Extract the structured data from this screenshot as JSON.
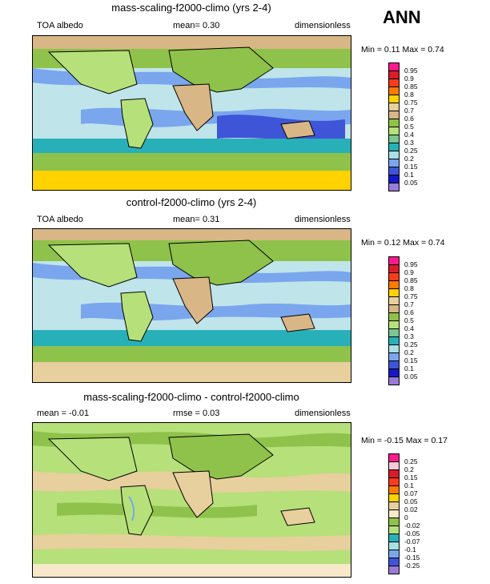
{
  "header": {
    "annual_label": "ANN"
  },
  "panels": [
    {
      "title": "mass-scaling-f2000-climo (yrs 2-4)",
      "left_label": "TOA albedo",
      "center_label": "mean=  0.30",
      "right_label": "dimensionless",
      "minmax": "Min =   0.11 Max =   0.74"
    },
    {
      "title": "control-f2000-climo (yrs 2-4)",
      "left_label": "TOA albedo",
      "center_label": "mean=  0.31",
      "right_label": "dimensionless",
      "minmax": "Min =  0.12 Max =   0.74"
    },
    {
      "title": "mass-scaling-f2000-climo - control-f2000-climo",
      "left_label": "mean = -0.01",
      "center_label": "rmse =  0.03",
      "right_label": "dimensionless",
      "minmax": "Min =  -0.15 Max =   0.17"
    }
  ],
  "colorbars": {
    "fields": {
      "labels": [
        "0.95",
        "0.9",
        "0.85",
        "0.8",
        "0.75",
        "0.7",
        "0.6",
        "0.5",
        "0.4",
        "0.3",
        "0.25",
        "0.2",
        "0.15",
        "0.1",
        "0.05"
      ],
      "colors": [
        "#ff1a8c",
        "#d81c2a",
        "#ff3a1a",
        "#ff7a00",
        "#ffd200",
        "#e8cf9e",
        "#d9b686",
        "#8fc24a",
        "#b6e07a",
        "#78c890",
        "#28b0b8",
        "#a8e0e4",
        "#7aa6ee",
        "#3f55d8",
        "#1418c8",
        "#9a7ad8"
      ]
    },
    "difference": {
      "labels": [
        "0.25",
        "0.2",
        "0.15",
        "0.1",
        "0.07",
        "0.05",
        "0.02",
        "0",
        "-0.02",
        "-0.05",
        "-0.07",
        "-0.1",
        "-0.15",
        "-0.25"
      ],
      "colors": [
        "#ff1a8c",
        "#f8c8d8",
        "#d81c2a",
        "#ff3a1a",
        "#ff7a00",
        "#ffd200",
        "#e8cf9e",
        "#f6e8c8",
        "#8fc24a",
        "#b6e07a",
        "#28b0b8",
        "#a8e0e4",
        "#7aa6ee",
        "#3f55d8",
        "#9a7ad8"
      ]
    }
  }
}
